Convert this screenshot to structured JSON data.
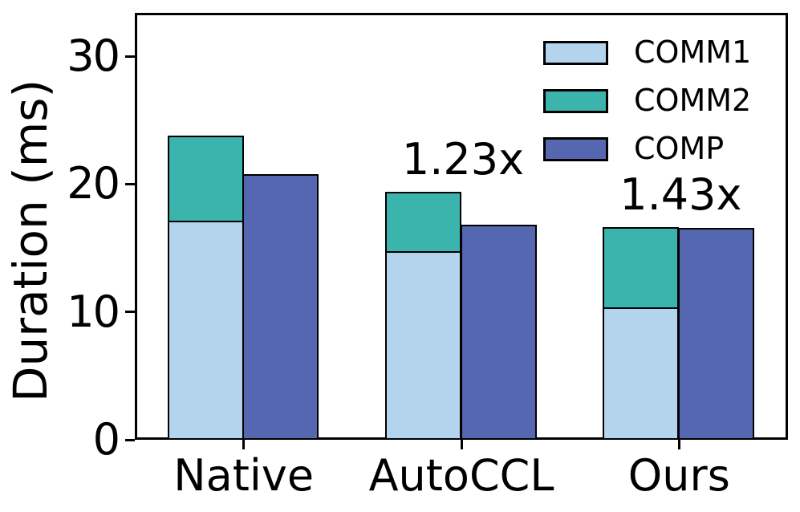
{
  "chart_data": {
    "type": "bar",
    "title": "",
    "xlabel": "",
    "ylabel": "Duration (ms)",
    "ylim": [
      0,
      33.4
    ],
    "yticks": [
      0,
      10,
      20,
      30
    ],
    "categories": [
      "Native",
      "AutoCCL",
      "Ours"
    ],
    "series": [
      {
        "name": "COMM1",
        "color": "#b4d4ee",
        "stack": "comm",
        "values": [
          17.2,
          14.8,
          10.4
        ]
      },
      {
        "name": "COMM2",
        "color": "#3ab4ac",
        "stack": "comm",
        "values": [
          6.6,
          4.6,
          6.25
        ]
      },
      {
        "name": "COMP",
        "color": "#5467b0",
        "stack": "comp",
        "values": [
          20.8,
          16.8,
          16.6
        ]
      }
    ],
    "annotations": [
      {
        "category_index": 1,
        "text": "1.23x"
      },
      {
        "category_index": 2,
        "text": "1.43x"
      }
    ],
    "legend": {
      "position": "upper-right",
      "entries": [
        "COMM1",
        "COMM2",
        "COMP"
      ]
    },
    "grid": false,
    "axis_color": "#000000",
    "background_color": "#ffffff"
  }
}
